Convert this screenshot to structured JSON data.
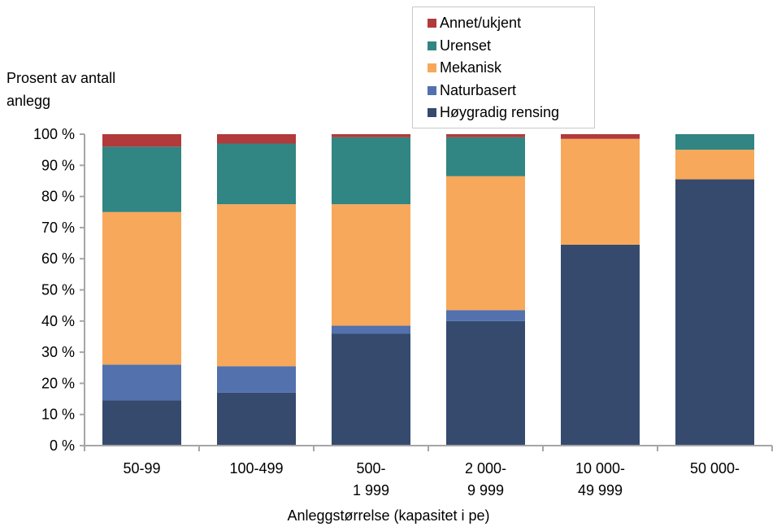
{
  "chart_data": {
    "type": "bar",
    "stacked": true,
    "categories": [
      [
        "50-99"
      ],
      [
        "100-499"
      ],
      [
        "500-",
        "1 999"
      ],
      [
        "2 000-",
        "9 999"
      ],
      [
        "10 000-",
        "49 999"
      ],
      [
        "50 000-"
      ]
    ],
    "series": [
      {
        "name": "Høygradig rensing",
        "color": "#364a6e",
        "values": [
          14.5,
          17,
          36,
          40,
          64.5,
          85.5
        ]
      },
      {
        "name": "Naturbasert",
        "color": "#5271ad",
        "values": [
          11.5,
          8.5,
          2.5,
          3.5,
          0,
          0
        ]
      },
      {
        "name": "Mekanisk",
        "color": "#f8a85a",
        "values": [
          49,
          52,
          39,
          43,
          34,
          9.5
        ]
      },
      {
        "name": "Urenset",
        "color": "#318582",
        "values": [
          21,
          19.5,
          21.5,
          12.5,
          0,
          5
        ]
      },
      {
        "name": "Annet/ukjent",
        "color": "#b23a3a",
        "values": [
          4,
          3,
          1,
          1,
          1.5,
          0
        ]
      }
    ],
    "ylabel": "Prosent av antall anlegg",
    "xlabel": "Anleggstørrelse (kapasitet i pe)",
    "ylim": [
      0,
      100
    ],
    "yticks": [
      0,
      10,
      20,
      30,
      40,
      50,
      60,
      70,
      80,
      90,
      100
    ],
    "ytick_suffix": " %",
    "legend_order": [
      "Annet/ukjent",
      "Urenset",
      "Mekanisk",
      "Naturbasert",
      "Høygradig rensing"
    ],
    "legend_position": "top-right",
    "grid": false
  }
}
